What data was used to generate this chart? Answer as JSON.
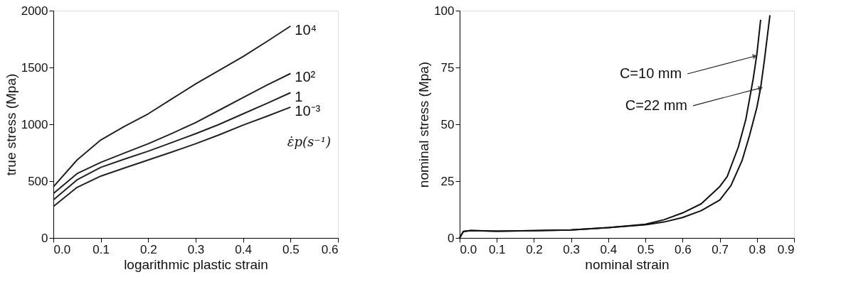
{
  "chart_data": [
    {
      "type": "line",
      "xlabel": "logarithmic plastic strain",
      "ylabel": "true stress (Mpa)",
      "xlim": [
        0,
        0.6
      ],
      "ylim": [
        0,
        2000
      ],
      "xticks": [
        {
          "value": 0,
          "label": "0.0"
        },
        0.1,
        0.2,
        0.3,
        0.4,
        0.5,
        0.6
      ],
      "yticks": [
        0,
        500,
        1000,
        1500,
        2000
      ],
      "grid": false,
      "legend": false,
      "line_style": "solid",
      "marker": "none",
      "x": [
        0,
        0.05,
        0.1,
        0.15,
        0.2,
        0.25,
        0.3,
        0.35,
        0.4,
        0.45,
        0.5
      ],
      "series": [
        {
          "name": "10⁴",
          "color": "#222222",
          "values": [
            450,
            686,
            862,
            982,
            1092,
            1224,
            1355,
            1476,
            1596,
            1728,
            1864
          ]
        },
        {
          "name": "10²",
          "color": "#222222",
          "values": [
            390,
            566,
            665,
            748,
            829,
            920,
            1015,
            1125,
            1235,
            1344,
            1447
          ]
        },
        {
          "name": "1",
          "color": "#222222",
          "values": [
            335,
            511,
            621,
            694,
            763,
            840,
            917,
            1000,
            1092,
            1184,
            1278
          ]
        },
        {
          "name": "10⁻³",
          "color": "#222222",
          "values": [
            276,
            445,
            544,
            616,
            686,
            756,
            829,
            908,
            993,
            1070,
            1151
          ]
        }
      ],
      "annotations": [
        "ε̇p(s⁻¹)"
      ]
    },
    {
      "type": "line",
      "xlabel": "nominal strain",
      "ylabel": "nominal stress (Mpa)",
      "xlim": [
        0,
        0.9
      ],
      "ylim": [
        0,
        100
      ],
      "xticks": [
        {
          "value": 0,
          "label": "0.0"
        },
        0.1,
        0.2,
        0.3,
        0.4,
        0.5,
        0.6,
        0.7,
        0.8,
        0.9
      ],
      "yticks": [
        0,
        25,
        50,
        75,
        100
      ],
      "grid": false,
      "legend": false,
      "line_style": "solid",
      "marker": "none",
      "series": [
        {
          "color": "#111111",
          "x": [
            0,
            0.01,
            0.03,
            0.1,
            0.2,
            0.3,
            0.4,
            0.5,
            0.55,
            0.6,
            0.65,
            0.7,
            0.72,
            0.75,
            0.77,
            0.79,
            0.8,
            0.81
          ],
          "values": [
            0,
            2.9,
            3.3,
            3,
            3.2,
            3.5,
            4.5,
            6,
            8,
            11,
            15,
            22.6,
            27,
            40,
            52,
            70,
            81,
            96
          ]
        },
        {
          "color": "#111111",
          "x": [
            0,
            0.01,
            0.03,
            0.1,
            0.2,
            0.3,
            0.4,
            0.5,
            0.55,
            0.6,
            0.65,
            0.7,
            0.73,
            0.76,
            0.78,
            0.8,
            0.81,
            0.82,
            0.835
          ],
          "values": [
            0,
            2.8,
            3.2,
            3,
            3.2,
            3.5,
            4.5,
            5.8,
            7,
            9,
            12,
            16.7,
            23,
            34,
            45,
            57.5,
            66,
            78,
            98
          ]
        }
      ],
      "annotations": [
        {
          "text": "C=10 mm",
          "x": 0.795,
          "y": 80
        },
        {
          "text": "C=22 mm",
          "x": 0.81,
          "y": 66
        }
      ]
    }
  ]
}
